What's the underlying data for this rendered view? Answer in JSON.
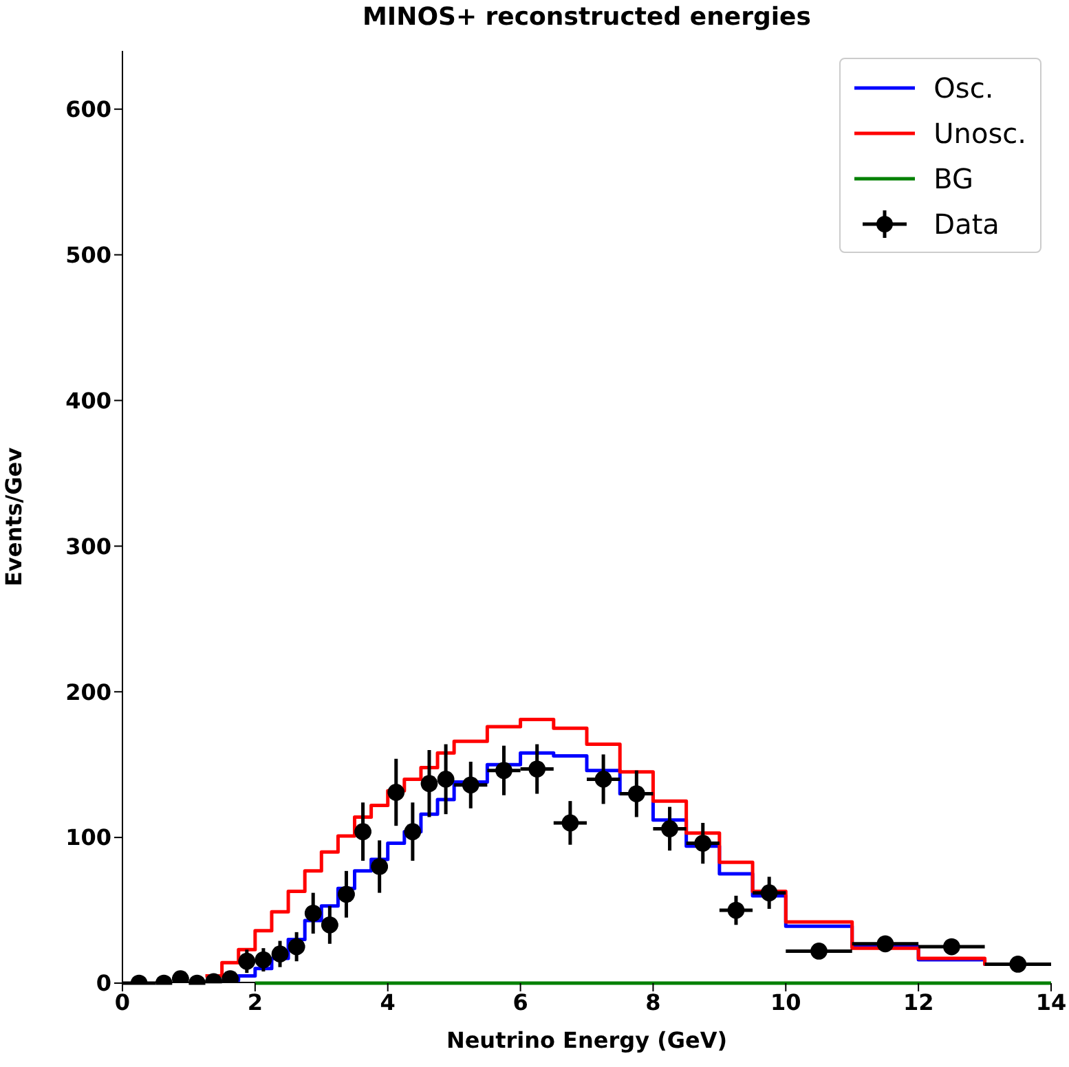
{
  "chart_data": {
    "type": "scatter",
    "title": "MINOS+ reconstructed energies",
    "xlabel": "Neutrino Energy (GeV)",
    "ylabel": "Events/Gev",
    "xlim": [
      0,
      14
    ],
    "xticks": [
      0,
      2,
      4,
      6,
      8,
      10,
      12,
      14
    ],
    "ylim": [
      0,
      640
    ],
    "yticks": [
      0,
      100,
      200,
      300,
      400,
      500,
      600
    ],
    "grid": false,
    "legend": "top right",
    "series": [
      {
        "name": "Osc.",
        "type": "histogram",
        "color": "#0000ff",
        "bins": [
          1.5,
          1.75,
          2.0,
          2.25,
          2.5,
          2.75,
          3.0,
          3.25,
          3.5,
          3.75,
          4.0,
          4.25,
          4.5,
          4.75,
          5.0,
          5.5,
          6.0,
          6.5,
          7.0,
          7.5,
          8.0,
          8.5,
          9.0,
          9.5,
          10,
          11,
          12,
          13,
          14
        ],
        "values": [
          2,
          5,
          10,
          17,
          30,
          43,
          53,
          65,
          77,
          85,
          96,
          104,
          116,
          126,
          138,
          150,
          158,
          156,
          146,
          130,
          112,
          94,
          75,
          60,
          39,
          25,
          16,
          13
        ]
      },
      {
        "name": "Unosc.",
        "type": "histogram",
        "color": "#ff0000",
        "bins": [
          1.25,
          1.5,
          1.75,
          2.0,
          2.25,
          2.5,
          2.75,
          3.0,
          3.25,
          3.5,
          3.75,
          4.0,
          4.25,
          4.5,
          4.75,
          5.0,
          5.5,
          6.0,
          6.5,
          7.0,
          7.5,
          8.0,
          8.5,
          9.0,
          9.5,
          10,
          11,
          12,
          13,
          14
        ],
        "values": [
          5,
          14,
          23,
          36,
          49,
          63,
          77,
          90,
          101,
          114,
          122,
          132,
          140,
          148,
          158,
          166,
          176,
          181,
          175,
          164,
          145,
          125,
          103,
          83,
          63,
          42,
          24,
          17,
          13
        ]
      },
      {
        "name": "BG",
        "type": "line",
        "color": "#008000",
        "x": [
          2,
          14
        ],
        "values": [
          0,
          0
        ]
      },
      {
        "name": "Data",
        "color": "#000000",
        "marker": "circle",
        "x": [
          0.25,
          0.625,
          0.875,
          1.125,
          1.375,
          1.625,
          1.875,
          2.125,
          2.375,
          2.625,
          2.875,
          3.125,
          3.375,
          3.625,
          3.875,
          4.125,
          4.375,
          4.625,
          4.875,
          5.25,
          5.75,
          6.25,
          6.75,
          7.25,
          7.75,
          8.25,
          8.75,
          9.25,
          9.75,
          10.5,
          11.5,
          12.5,
          13.5
        ],
        "values": [
          0,
          0,
          3,
          0,
          1,
          3,
          15,
          16,
          20,
          25,
          48,
          40,
          61,
          104,
          80,
          131,
          104,
          137,
          140,
          136,
          146,
          147,
          110,
          140,
          130,
          106,
          96,
          50,
          62,
          22,
          27,
          25,
          13
        ],
        "errors": [
          null,
          null,
          3,
          null,
          null,
          3,
          8,
          8,
          9,
          10,
          14,
          13,
          16,
          20,
          18,
          23,
          20,
          23,
          24,
          16,
          17,
          17,
          15,
          17,
          16,
          15,
          14,
          10,
          11,
          5,
          5,
          5,
          4
        ],
        "xerrors": [
          0.25,
          0.125,
          0.125,
          0.125,
          0.125,
          0.125,
          0.125,
          0.125,
          0.125,
          0.125,
          0.125,
          0.125,
          0.125,
          0.125,
          0.125,
          0.125,
          0.125,
          0.125,
          0.125,
          0.25,
          0.25,
          0.25,
          0.25,
          0.25,
          0.25,
          0.25,
          0.25,
          0.25,
          0.25,
          0.5,
          0.5,
          0.5,
          0.5
        ]
      }
    ]
  }
}
